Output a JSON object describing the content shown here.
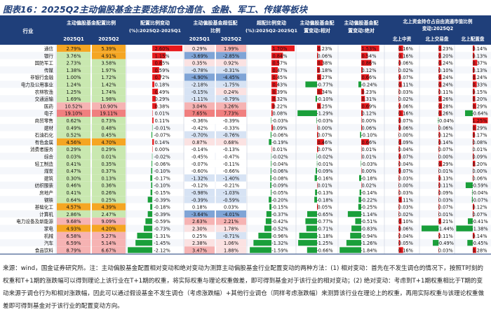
{
  "title": "图表16：2025Q2主动偏股基金主要选择加仓通信、金融、军工、传媒等板块",
  "note": "来源：wind，国金证券研究所。注：主动偏股基金配置相对变动和绝对变动为测算主动偏股基金行业配置变动的两种方法：(1) 相对变动：首先在不发生调仓的情况下，按照T时刻的权重和T+1期的涨跌幅可以得到理论上该行业在T+1期的权重，将实际权重与理论权重做差，即可得到基金对于该行业的相对变动；(2) 绝对变动：考虑到T+1期权重相比于T期的变动来源于调仓行为和相对涨跌幅，因此可以通过假设基金不发生调仓（考虑涨跌幅）+其他行业调仓（同样考虑涨跌幅）来测算该行业在理论上的权重，再用实际权重与该理论权重做差即可得到基金对于该行业的配置变动方向。",
  "chart_data": {
    "type": "table",
    "header": {
      "industry": "行业",
      "g1": "主动偏股基金配置比例",
      "g1_sub": [
        "2025Q1",
        "2025Q2"
      ],
      "g2": "配置比例变动(%):2025Q2-2025Q1",
      "g3": "主动偏股基金超低配比例",
      "g3_sub": [
        "2025Q1",
        "2025Q2"
      ],
      "g4": "超配比例变动(%):2025Q2-2025Q1",
      "g5": "主动偏股基金配置变动:相对",
      "g6": "主动偏股基金配置变动:绝对",
      "g7": "北上资金持仓占自由流通市值比例变动:2025Q2",
      "g7_sub": [
        "北上中资",
        "北上交易盘",
        "北上配置盘"
      ]
    },
    "colors": {
      "pos_bar": "#e8191c",
      "neg_bar": "#1a9f3a",
      "header_bg": "#1f3f7a",
      "orange": "#f5a623",
      "green_cell": "#8fcf6b",
      "light_green": "#c9e8b0",
      "red_cell": "#f6b3b3",
      "light_red": "#fbe2e2",
      "blue_cell": "#7fa4d6",
      "light_blue": "#d7e3f4"
    },
    "rows": [
      {
        "name": "通信",
        "q1": "2.79%",
        "q2": "5.39%",
        "chg": 2.6,
        "o1": "0.29%",
        "o2": "1.99%",
        "ochg": 1.7,
        "rel": "0.23%",
        "abs": "1.53%",
        "n1": "0.16%",
        "n2": "0.23%",
        "n3": "0.14%",
        "c1": "org",
        "c2": "org",
        "co1": "lr",
        "co2": "r"
      },
      {
        "name": "银行",
        "q1": "3.76%",
        "q2": "4.91%",
        "chg": 1.15,
        "o1": "-3.69%",
        "o2": "-2.85%",
        "ochg": 0.84,
        "rel": "0.06%",
        "abs": "0.54%",
        "n1": "0.16%",
        "n2": "0.20%",
        "n3": "0.13%",
        "c1": "lg",
        "c2": "org",
        "co1": "b",
        "co2": "b"
      },
      {
        "name": "国防军工",
        "q1": "2.73%",
        "q2": "3.58%",
        "chg": 0.85,
        "o1": "0.35%",
        "o2": "0.92%",
        "ochg": 0.57,
        "rel": "0.38%",
        "abs": "0.86%",
        "n1": "0.06%",
        "n2": "0.24%",
        "n3": "0.37%",
        "c1": "lg",
        "c2": "lg",
        "co1": "lr",
        "co2": "lr"
      },
      {
        "name": "传媒",
        "q1": "1.38%",
        "q2": "1.97%",
        "chg": 0.59,
        "o1": "-0.78%",
        "o2": "-0.31%",
        "ochg": 0.47,
        "rel": "0.18%",
        "abs": "0.12%",
        "n1": "0.02%",
        "n2": "0.10%",
        "n3": "0.13%",
        "c1": "lg",
        "c2": "lg",
        "co1": "lb",
        "co2": "lb"
      },
      {
        "name": "非银行金融",
        "q1": "1.00%",
        "q2": "1.72%",
        "chg": 0.72,
        "o1": "-4.90%",
        "o2": "-4.45%",
        "ochg": 0.45,
        "rel": "0.27%",
        "abs": "0.66%",
        "n1": "0.07%",
        "n2": "0.24%",
        "n3": "0.24%",
        "c1": "lg",
        "c2": "lg",
        "co1": "b",
        "co2": "b"
      },
      {
        "name": "电力及公用事业",
        "q1": "1.24%",
        "q2": "1.42%",
        "chg": 0.18,
        "o1": "-2.18%",
        "o2": "-1.75%",
        "ochg": 0.43,
        "rel": "-0.77%",
        "abs": "-0.24%",
        "n1": "0.11%",
        "n2": "0.24%",
        "n3": "0.33%",
        "c1": "lg",
        "c2": "lg",
        "co1": "lb",
        "co2": "lb"
      },
      {
        "name": "农林牧渔",
        "q1": "1.25%",
        "q2": "1.74%",
        "chg": 0.49,
        "o1": "-0.15%",
        "o2": "0.24%",
        "ochg": 0.39,
        "rel": "0.34%",
        "abs": "0.23%",
        "n1": "0.03%",
        "n2": "0.11%",
        "n3": "0.15%",
        "c1": "lg",
        "c2": "lg",
        "co1": "lb",
        "co2": "lr"
      },
      {
        "name": "交通运输",
        "q1": "1.69%",
        "q2": "1.98%",
        "chg": 0.29,
        "o1": "-1.11%",
        "o2": "-0.79%",
        "ochg": 0.32,
        "rel": "-0.10%",
        "abs": "0.31%",
        "n1": "0.02%",
        "n2": "0.26%",
        "n3": "0.20%",
        "c1": "lg",
        "c2": "lg",
        "co1": "lb",
        "co2": "lb"
      },
      {
        "name": "医药",
        "q1": "10.52%",
        "q2": "10.90%",
        "chg": 0.38,
        "o1": "3.04%",
        "o2": "3.26%",
        "ochg": 0.22,
        "rel": "0.25%",
        "abs": "0.69%",
        "n1": "0.06%",
        "n2": "0.28%",
        "n3": "0.29%",
        "c1": "r",
        "c2": "r",
        "co1": "r",
        "co2": "r"
      },
      {
        "name": "电子",
        "q1": "19.10%",
        "q2": "19.11%",
        "chg": 0.01,
        "o1": "7.65%",
        "o2": "7.73%",
        "ochg": 0.08,
        "rel": "-1.29%",
        "abs": "0.12%",
        "n1": "0.16%",
        "n2": "0.26%",
        "n3": "-0.64%",
        "c1": "rr",
        "c2": "rr",
        "co1": "rr",
        "co2": "rr"
      },
      {
        "name": "商贸零售",
        "q1": "0.62%",
        "q2": "0.73%",
        "chg": 0.11,
        "o1": "-0.36%",
        "o2": "-0.39%",
        "ochg": -0.03,
        "rel": "-0.03%",
        "abs": "0.00%",
        "n1": "0.07%",
        "n2": "-0.04%",
        "n3": "1.25%",
        "c1": "lg",
        "c2": "lg",
        "co1": "w",
        "co2": "w"
      },
      {
        "name": "建材",
        "q1": "0.49%",
        "q2": "0.48%",
        "chg": -0.01,
        "o1": "-0.42%",
        "o2": "-0.33%",
        "ochg": 0.09,
        "rel": "0.00%",
        "abs": "0.06%",
        "n1": "0.06%",
        "n2": "0.06%",
        "n3": "0.29%",
        "c1": "lg",
        "c2": "lg",
        "co1": "w",
        "co2": "w"
      },
      {
        "name": "石油石化",
        "q1": "0.52%",
        "q2": "0.45%",
        "chg": -0.07,
        "o1": "-0.70%",
        "o2": "-0.76%",
        "ochg": -0.06,
        "rel": "0.07%",
        "abs": "-0.10%",
        "n1": "0.00%",
        "n2": "0.12%",
        "n3": "0.17%",
        "c1": "lg",
        "c2": "lg",
        "co1": "lb",
        "co2": "lb"
      },
      {
        "name": "有色金属",
        "q1": "4.56%",
        "q2": "4.70%",
        "chg": 0.14,
        "o1": "0.87%",
        "o2": "0.68%",
        "ochg": -0.19,
        "rel": "0.46%",
        "abs": "0.66%",
        "n1": "0.09%",
        "n2": "0.14%",
        "n3": "0.08%",
        "c1": "org",
        "c2": "org",
        "co1": "lr",
        "co2": "lr"
      },
      {
        "name": "消费者服务",
        "q1": "0.29%",
        "q2": "0.29%",
        "chg": 0.0,
        "o1": "-0.14%",
        "o2": "-0.13%",
        "ochg": 0.01,
        "rel": "0.07%",
        "abs": "0.01%",
        "n1": "0.04%",
        "n2": "0.07%",
        "n3": "0.01%",
        "c1": "lg",
        "c2": "lg",
        "co1": "w",
        "co2": "w"
      },
      {
        "name": "综合",
        "q1": "0.03%",
        "q2": "0.01%",
        "chg": -0.02,
        "o1": "-0.45%",
        "o2": "-0.47%",
        "ochg": -0.02,
        "rel": "-0.02%",
        "abs": "0.01%",
        "n1": "0.07%",
        "n2": "0.00%",
        "n3": "0.09%",
        "c1": "lg",
        "c2": "lg",
        "co1": "w",
        "co2": "w"
      },
      {
        "name": "轻工制造",
        "q1": "0.41%",
        "q2": "0.35%",
        "chg": -0.06,
        "o1": "-0.07%",
        "o2": "-0.11%",
        "ochg": -0.04,
        "rel": "-0.01%",
        "abs": "-0.03%",
        "n1": "0.04%",
        "n2": "0.29%",
        "n3": "0.20%",
        "c1": "lg",
        "c2": "lg",
        "co1": "w",
        "co2": "w"
      },
      {
        "name": "煤炭",
        "q1": "0.47%",
        "q2": "0.37%",
        "chg": -0.1,
        "o1": "-0.60%",
        "o2": "-0.66%",
        "ochg": -0.06,
        "rel": "-0.09%",
        "abs": "0.00%",
        "n1": "0.07%",
        "n2": "0.01%",
        "n3": "0.00%",
        "c1": "lg",
        "c2": "lg",
        "co1": "w",
        "co2": "w"
      },
      {
        "name": "建筑",
        "q1": "0.30%",
        "q2": "0.13%",
        "chg": -0.17,
        "o1": "-1.32%",
        "o2": "-1.40%",
        "ochg": -0.08,
        "rel": "-0.16%",
        "abs": "-0.18%",
        "n1": "0.03%",
        "n2": "0.13%",
        "n3": "0.06%",
        "c1": "lg",
        "c2": "lg",
        "co1": "lb",
        "co2": "lb"
      },
      {
        "name": "纺织服装",
        "q1": "0.46%",
        "q2": "0.36%",
        "chg": -0.1,
        "o1": "-0.12%",
        "o2": "-0.21%",
        "ochg": -0.09,
        "rel": "0.01%",
        "abs": "0.02%",
        "n1": "0.00%",
        "n2": "0.11%",
        "n3": "-0.59%",
        "c1": "lg",
        "c2": "lg",
        "co1": "w",
        "co2": "w"
      },
      {
        "name": "房地产",
        "q1": "0.41%",
        "q2": "0.26%",
        "chg": -0.15,
        "o1": "-0.98%",
        "o2": "-1.03%",
        "ochg": -0.05,
        "rel": "-0.13%",
        "abs": "-0.14%",
        "n1": "0.03%",
        "n2": "0.09%",
        "n3": "-0.04%",
        "c1": "lg",
        "c2": "lg",
        "co1": "lb",
        "co2": "lb"
      },
      {
        "name": "钢铁",
        "q1": "0.64%",
        "q2": "0.25%",
        "chg": -0.39,
        "o1": "-0.39%",
        "o2": "-0.59%",
        "ochg": -0.2,
        "rel": "-0.18%",
        "abs": "-0.22%",
        "n1": "0.11%",
        "n2": "0.03%",
        "n3": "-0.07%",
        "c1": "lg",
        "c2": "lg",
        "co1": "lb",
        "co2": "lb"
      },
      {
        "name": "基础化工",
        "q1": "4.57%",
        "q2": "4.39%",
        "chg": -0.18,
        "o1": "0.18%",
        "o2": "0.03%",
        "ochg": -0.15,
        "rel": "0.05%",
        "abs": "-0.25%",
        "n1": "0.03%",
        "n2": "0.07%",
        "n3": "0.12%",
        "c1": "org",
        "c2": "org",
        "co1": "w",
        "co2": "w"
      },
      {
        "name": "计算机",
        "q1": "2.86%",
        "q2": "2.47%",
        "chg": -0.39,
        "o1": "-3.64%",
        "o2": "-4.01%",
        "ochg": -0.37,
        "rel": "-0.65%",
        "abs": "-1.14%",
        "n1": "0.02%",
        "n2": "0.01%",
        "n3": "0.07%",
        "c1": "lg",
        "c2": "lg",
        "co1": "b",
        "co2": "b"
      },
      {
        "name": "电力设备及新能源",
        "q1": "9.68%",
        "q2": "9.09%",
        "chg": -0.59,
        "o1": "2.63%",
        "o2": "2.21%",
        "ochg": -0.42,
        "rel": "-0.77%",
        "abs": "-0.51%",
        "n1": "0.10%",
        "n2": "0.21%",
        "n3": "-0.41%",
        "c1": "r",
        "c2": "r",
        "co1": "r",
        "co2": "r"
      },
      {
        "name": "家电",
        "q1": "4.93%",
        "q2": "4.20%",
        "chg": -0.73,
        "o1": "2.30%",
        "o2": "1.78%",
        "ochg": -0.52,
        "rel": "-0.71%",
        "abs": "-0.83%",
        "n1": "0.06%",
        "n2": "-1.44%",
        "n3": "-1.38%",
        "c1": "org",
        "c2": "org",
        "co1": "lr",
        "co2": "lr"
      },
      {
        "name": "机械",
        "q1": "6.58%",
        "q2": "5.27%",
        "chg": -1.31,
        "o1": "0.25%",
        "o2": "-0.71%",
        "ochg": -0.96,
        "rel": "-1.18%",
        "abs": "-0.94%",
        "n1": "0.04%",
        "n2": "0.11%",
        "n3": "0.14%",
        "c1": "r",
        "c2": "r",
        "co1": "w",
        "co2": "lb"
      },
      {
        "name": "汽车",
        "q1": "6.59%",
        "q2": "5.14%",
        "chg": -1.45,
        "o1": "2.38%",
        "o2": "1.06%",
        "ochg": -1.32,
        "rel": "-1.25%",
        "abs": "-1.26%",
        "n1": "0.05%",
        "n2": "-0.49%",
        "n3": "-0.45%",
        "c1": "r",
        "c2": "r",
        "co1": "lr",
        "co2": "lr"
      },
      {
        "name": "食品饮料",
        "q1": "8.79%",
        "q2": "6.67%",
        "chg": -2.12,
        "o1": "3.47%",
        "o2": "1.88%",
        "ochg": -1.59,
        "rel": "-0.66%",
        "abs": "-1.84%",
        "n1": "0.16%",
        "n2": "0.03%",
        "n3": "0.28%",
        "c1": "r",
        "c2": "r",
        "co1": "r",
        "co2": "lr"
      }
    ]
  }
}
